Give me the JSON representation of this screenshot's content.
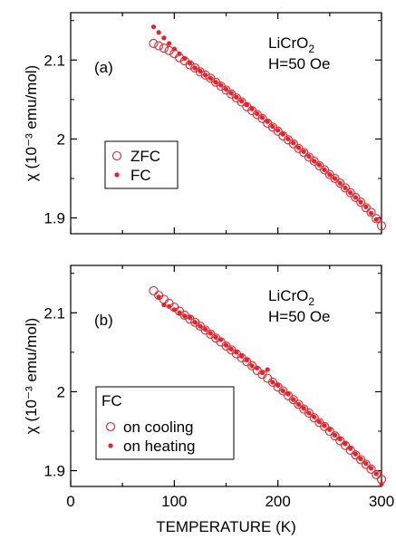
{
  "chart_data": [
    {
      "type": "scatter",
      "panel_label": "(a)",
      "annotation": [
        "LiCrO",
        "2",
        "H=50 Oe"
      ],
      "ylabel": "χ (10⁻³ emu/mol)",
      "ylim": [
        1.88,
        2.16
      ],
      "xlim": [
        0,
        300
      ],
      "yticks": [
        {
          "value": 1.9,
          "label": "1.9"
        },
        {
          "value": 2.0,
          "label": "2"
        },
        {
          "value": 2.1,
          "label": "2.1"
        }
      ],
      "legend_position": "middle-left",
      "colors": {
        "series": "#e8222a"
      },
      "series": [
        {
          "name": "ZFC",
          "marker": "open-circle",
          "x": [
            80,
            85,
            90,
            95,
            100,
            105,
            110,
            115,
            120,
            125,
            130,
            135,
            140,
            145,
            150,
            155,
            160,
            165,
            170,
            175,
            180,
            185,
            190,
            195,
            200,
            205,
            210,
            215,
            220,
            225,
            230,
            235,
            240,
            245,
            250,
            255,
            260,
            265,
            270,
            275,
            280,
            285,
            290,
            295,
            300
          ],
          "y": [
            2.121,
            2.118,
            2.115,
            2.112,
            2.108,
            2.103,
            2.099,
            2.094,
            2.09,
            2.085,
            2.081,
            2.077,
            2.072,
            2.067,
            2.062,
            2.057,
            2.052,
            2.047,
            2.041,
            2.036,
            2.031,
            2.026,
            2.02,
            2.015,
            2.01,
            2.004,
            1.999,
            1.994,
            1.988,
            1.983,
            1.977,
            1.972,
            1.966,
            1.961,
            1.955,
            1.95,
            1.944,
            1.938,
            1.932,
            1.926,
            1.92,
            1.913,
            1.907,
            1.899,
            1.89
          ]
        },
        {
          "name": "FC",
          "marker": "filled-circle",
          "x": [
            80,
            85,
            90,
            95,
            100,
            105,
            110,
            115,
            120,
            125,
            130,
            135,
            140,
            145,
            150,
            155,
            160,
            165,
            170,
            175,
            180,
            185,
            190,
            195,
            200,
            205,
            210,
            215,
            220,
            225,
            230,
            235,
            240,
            245,
            250,
            255,
            260,
            265,
            270,
            275,
            280,
            285,
            290,
            295
          ],
          "y": [
            2.142,
            2.135,
            2.128,
            2.121,
            2.114,
            2.108,
            2.102,
            2.096,
            2.09,
            2.086,
            2.081,
            2.077,
            2.072,
            2.068,
            2.063,
            2.058,
            2.053,
            2.048,
            2.043,
            2.038,
            2.032,
            2.027,
            2.022,
            2.016,
            2.011,
            2.006,
            2.0,
            1.995,
            1.989,
            1.984,
            1.978,
            1.972,
            1.967,
            1.961,
            1.955,
            1.95,
            1.944,
            1.938,
            1.932,
            1.926,
            1.92,
            1.914,
            1.906,
            1.898
          ]
        }
      ]
    },
    {
      "type": "scatter",
      "panel_label": "(b)",
      "annotation": [
        "LiCrO",
        "2",
        "H=50 Oe"
      ],
      "ylabel": "χ (10⁻³ emu/mol)",
      "xlabel": "TEMPERATURE (K)",
      "ylim": [
        1.88,
        2.16
      ],
      "xlim": [
        0,
        300
      ],
      "xticks": [
        {
          "value": 0,
          "label": "0"
        },
        {
          "value": 100,
          "label": "100"
        },
        {
          "value": 200,
          "label": "200"
        },
        {
          "value": 300,
          "label": "300"
        }
      ],
      "yticks": [
        {
          "value": 1.9,
          "label": "1.9"
        },
        {
          "value": 2.0,
          "label": "2"
        },
        {
          "value": 2.1,
          "label": "2.1"
        }
      ],
      "legend_title": "FC",
      "legend_position": "bottom-left",
      "colors": {
        "series": "#e8222a"
      },
      "series": [
        {
          "name": "on cooling",
          "marker": "open-circle",
          "x": [
            80,
            85,
            90,
            95,
            100,
            105,
            110,
            115,
            120,
            125,
            130,
            135,
            140,
            145,
            150,
            155,
            160,
            165,
            170,
            175,
            180,
            185,
            190,
            195,
            200,
            205,
            210,
            215,
            220,
            225,
            230,
            235,
            240,
            245,
            250,
            255,
            260,
            265,
            270,
            275,
            280,
            285,
            290,
            295,
            300
          ],
          "y": [
            2.128,
            2.122,
            2.117,
            2.112,
            2.107,
            2.102,
            2.097,
            2.092,
            2.088,
            2.083,
            2.078,
            2.073,
            2.068,
            2.063,
            2.058,
            2.053,
            2.048,
            2.043,
            2.038,
            2.033,
            2.027,
            2.022,
            2.017,
            2.012,
            2.006,
            2.001,
            1.995,
            1.99,
            1.984,
            1.978,
            1.973,
            1.967,
            1.961,
            1.956,
            1.95,
            1.944,
            1.938,
            1.932,
            1.926,
            1.92,
            1.914,
            1.908,
            1.902,
            1.895,
            1.889
          ]
        },
        {
          "name": "on heating",
          "marker": "filled-circle",
          "x": [
            85,
            90,
            95,
            100,
            105,
            110,
            115,
            120,
            125,
            130,
            135,
            140,
            145,
            150,
            155,
            160,
            165,
            170,
            175,
            180,
            185,
            190,
            195,
            200,
            205,
            210,
            215,
            220,
            225,
            230,
            235,
            240,
            245,
            250,
            255,
            260,
            265,
            270,
            275,
            280,
            285,
            290,
            295,
            300
          ],
          "y": [
            2.12,
            2.11,
            2.108,
            2.104,
            2.1,
            2.096,
            2.094,
            2.088,
            2.083,
            2.079,
            2.074,
            2.069,
            2.066,
            2.059,
            2.054,
            2.05,
            2.045,
            2.04,
            2.033,
            2.03,
            2.024,
            2.028,
            2.012,
            2.008,
            2.001,
            1.997,
            1.99,
            1.984,
            1.979,
            1.973,
            1.968,
            1.962,
            1.957,
            1.952,
            1.945,
            1.94,
            1.934,
            1.928,
            1.921,
            1.915,
            1.909,
            1.903,
            1.896,
            1.883
          ]
        }
      ]
    }
  ]
}
